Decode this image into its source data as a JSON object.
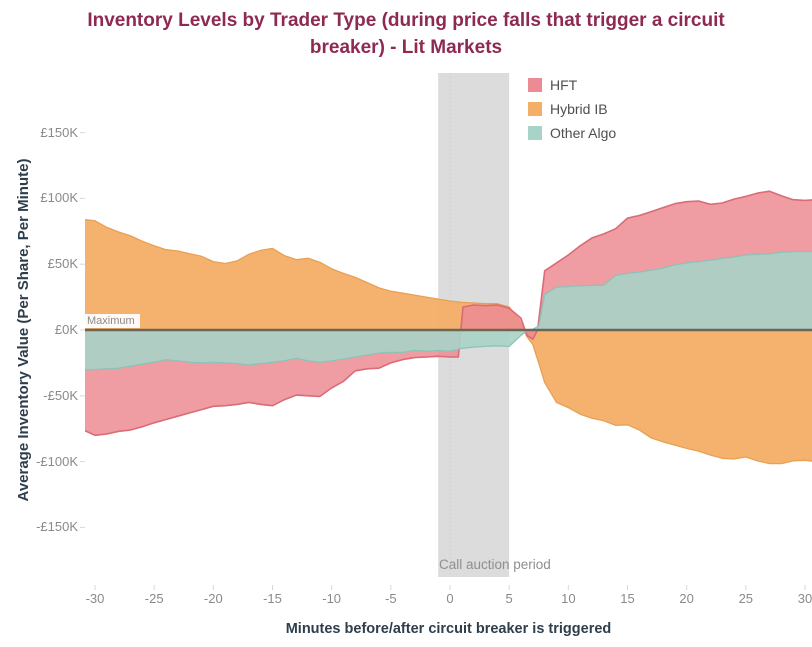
{
  "title": {
    "text": "Inventory Levels by Trader Type (during price falls that trigger a circuit breaker) - Lit Markets",
    "lines": [
      "Inventory Levels by Trader Type (during price falls that trigger a circuit",
      "breaker) - Lit Markets"
    ]
  },
  "y_axis": {
    "title": "Average Inventory Value (Per Share, Per Minute)",
    "ticks": [
      {
        "label": "£150K",
        "value_k": 150
      },
      {
        "label": "£100K",
        "value_k": 100
      },
      {
        "label": "£50K",
        "value_k": 50
      },
      {
        "label": "£0K",
        "value_k": 0
      },
      {
        "label": "-£50K",
        "value_k": -50
      },
      {
        "label": "-£100K",
        "value_k": -100
      },
      {
        "label": "-£150K",
        "value_k": -150
      }
    ]
  },
  "x_axis": {
    "title": "Minutes before/after circuit breaker is triggered",
    "ticks": [
      -30,
      -25,
      -20,
      -15,
      -10,
      -5,
      0,
      5,
      10,
      15,
      20,
      25,
      30
    ]
  },
  "legend": [
    {
      "label": "HFT",
      "color": "#ec8b93"
    },
    {
      "label": "Hybrid IB",
      "color": "#f4ae67"
    },
    {
      "label": "Other Algo",
      "color": "#a8d3c8"
    }
  ],
  "annotations": {
    "reference_line_label": "Maximum",
    "band_label": "Call auction period"
  },
  "colors": {
    "title": "#8e2a52",
    "axis_title": "#2f3e4c",
    "tick_label": "#8a8a8a",
    "band_fill": "#dcdcdc",
    "zero_line": "#6b6754",
    "tick_mark": "#d7d7d7",
    "hft_fill": "#ec8b93",
    "hft_edge": "#da6b77",
    "hybrid_fill": "#f4ae67",
    "hybrid_edge": "#e8a052",
    "algo_fill": "#a8d3c8",
    "algo_edge": "#8cc3b6"
  },
  "chart_data": {
    "type": "area",
    "title": "Inventory Levels by Trader Type (during price falls that trigger a circuit breaker) - Lit Markets",
    "xlabel": "Minutes before/after circuit breaker is triggered",
    "ylabel": "Average Inventory Value (Per Share, Per Minute)",
    "units": "GBP thousands (£K)",
    "x_range": [
      -31,
      31
    ],
    "ylim_k": [
      -175,
      195
    ],
    "grid": false,
    "legend_position": "top-right-inside",
    "reference_line": {
      "label": "Maximum",
      "value_k": 0
    },
    "band": {
      "label": "Call auction period",
      "from_minute": -1,
      "to_minute": 5
    },
    "zero_gridline_minute": 0,
    "draw_order": [
      "Hybrid IB",
      "HFT",
      "Other Algo"
    ],
    "series": [
      {
        "name": "Hybrid IB",
        "color": "#f4ae67",
        "points": [
          [
            -31,
            84
          ],
          [
            -30,
            83
          ],
          [
            -29,
            78
          ],
          [
            -28,
            74.5
          ],
          [
            -27,
            71.5
          ],
          [
            -26,
            67.5
          ],
          [
            -25,
            64
          ],
          [
            -24,
            61
          ],
          [
            -23,
            60
          ],
          [
            -22,
            58
          ],
          [
            -21,
            56
          ],
          [
            -20,
            52
          ],
          [
            -19,
            50.5
          ],
          [
            -18,
            52.5
          ],
          [
            -17,
            57.5
          ],
          [
            -16,
            60.5
          ],
          [
            -15,
            62
          ],
          [
            -14,
            56.5
          ],
          [
            -13,
            53.5
          ],
          [
            -12,
            54.5
          ],
          [
            -11,
            51.5
          ],
          [
            -10,
            46.5
          ],
          [
            -9,
            43
          ],
          [
            -8,
            40
          ],
          [
            -7,
            36
          ],
          [
            -6,
            32
          ],
          [
            -5,
            29.5
          ],
          [
            -4,
            28
          ],
          [
            -3,
            26.5
          ],
          [
            -2,
            25
          ],
          [
            -1,
            23.5
          ],
          [
            0,
            22
          ],
          [
            1,
            21
          ],
          [
            2,
            20.5
          ],
          [
            3,
            20
          ],
          [
            4,
            20
          ],
          [
            5,
            17.5
          ],
          [
            6,
            5
          ],
          [
            6.5,
            -5
          ],
          [
            7,
            -11
          ],
          [
            7.5,
            -25
          ],
          [
            8,
            -40
          ],
          [
            9,
            -55
          ],
          [
            10,
            -59
          ],
          [
            11,
            -64
          ],
          [
            12,
            -67
          ],
          [
            13,
            -69
          ],
          [
            14,
            -72.5
          ],
          [
            15,
            -72
          ],
          [
            16,
            -76
          ],
          [
            17,
            -82
          ],
          [
            18,
            -85
          ],
          [
            19,
            -87.5
          ],
          [
            20,
            -90
          ],
          [
            21,
            -92
          ],
          [
            22,
            -95
          ],
          [
            23,
            -97.5
          ],
          [
            24,
            -98
          ],
          [
            25,
            -96.5
          ],
          [
            26,
            -99.5
          ],
          [
            27,
            -101.5
          ],
          [
            28,
            -101.5
          ],
          [
            29,
            -99.5
          ],
          [
            30,
            -99
          ],
          [
            31,
            -100
          ]
        ]
      },
      {
        "name": "HFT",
        "color": "#ec8b93",
        "points": [
          [
            -31,
            -76
          ],
          [
            -30,
            -80
          ],
          [
            -29,
            -79
          ],
          [
            -28,
            -77
          ],
          [
            -27,
            -76
          ],
          [
            -26,
            -73.5
          ],
          [
            -25,
            -70.5
          ],
          [
            -24,
            -68
          ],
          [
            -23,
            -65.5
          ],
          [
            -22,
            -63
          ],
          [
            -21,
            -60.5
          ],
          [
            -20,
            -58
          ],
          [
            -19,
            -57.5
          ],
          [
            -18,
            -56.5
          ],
          [
            -17,
            -55
          ],
          [
            -16,
            -56.5
          ],
          [
            -15,
            -57.5
          ],
          [
            -14,
            -53
          ],
          [
            -13,
            -49.5
          ],
          [
            -12,
            -50
          ],
          [
            -11,
            -50.5
          ],
          [
            -10,
            -44
          ],
          [
            -9,
            -39
          ],
          [
            -8,
            -31
          ],
          [
            -7,
            -29.5
          ],
          [
            -6,
            -29
          ],
          [
            -5,
            -25
          ],
          [
            -4,
            -22.5
          ],
          [
            -3,
            -21
          ],
          [
            -2,
            -20.5
          ],
          [
            -1,
            -20
          ],
          [
            0,
            -20.5
          ],
          [
            0.7,
            -20.5
          ],
          [
            1.1,
            17.5
          ],
          [
            2,
            19
          ],
          [
            3,
            18.5
          ],
          [
            4,
            19
          ],
          [
            5,
            16.5
          ],
          [
            6,
            9
          ],
          [
            6.5,
            -4
          ],
          [
            7,
            -7
          ],
          [
            7.4,
            0
          ],
          [
            8,
            45
          ],
          [
            9,
            51
          ],
          [
            10,
            57
          ],
          [
            11,
            64
          ],
          [
            12,
            70
          ],
          [
            13,
            73
          ],
          [
            14,
            77
          ],
          [
            15,
            85
          ],
          [
            16,
            87
          ],
          [
            17,
            90
          ],
          [
            18,
            93
          ],
          [
            19,
            96
          ],
          [
            20,
            97.5
          ],
          [
            21,
            98
          ],
          [
            22,
            95.5
          ],
          [
            23,
            96.5
          ],
          [
            24,
            99.5
          ],
          [
            25,
            101.5
          ],
          [
            26,
            104
          ],
          [
            27,
            105.5
          ],
          [
            28,
            102
          ],
          [
            29,
            99
          ],
          [
            30,
            98.5
          ],
          [
            31,
            99
          ]
        ]
      },
      {
        "name": "Other Algo",
        "color": "#a8d3c8",
        "points": [
          [
            -31,
            -30.5
          ],
          [
            -30,
            -30
          ],
          [
            -29,
            -29.5
          ],
          [
            -28,
            -29
          ],
          [
            -27,
            -27.5
          ],
          [
            -26,
            -26
          ],
          [
            -25,
            -24.5
          ],
          [
            -24,
            -22.5
          ],
          [
            -23,
            -23.5
          ],
          [
            -22,
            -24.5
          ],
          [
            -21,
            -25
          ],
          [
            -20,
            -24.5
          ],
          [
            -19,
            -25
          ],
          [
            -18,
            -25.5
          ],
          [
            -17,
            -26.5
          ],
          [
            -16,
            -25.5
          ],
          [
            -15,
            -24.5
          ],
          [
            -14,
            -23.5
          ],
          [
            -13,
            -21.5
          ],
          [
            -12,
            -23.5
          ],
          [
            -11,
            -24.5
          ],
          [
            -10,
            -23.5
          ],
          [
            -9,
            -22
          ],
          [
            -8,
            -20.5
          ],
          [
            -7,
            -19
          ],
          [
            -6,
            -17.5
          ],
          [
            -5,
            -17
          ],
          [
            -4,
            -17
          ],
          [
            -3,
            -15.5
          ],
          [
            -2,
            -16
          ],
          [
            -1,
            -15.5
          ],
          [
            0,
            -16
          ],
          [
            1,
            -14
          ],
          [
            2,
            -13
          ],
          [
            3,
            -12.5
          ],
          [
            4,
            -12
          ],
          [
            5,
            -12.5
          ],
          [
            6,
            -4
          ],
          [
            6.5,
            -0.5
          ],
          [
            7,
            0.5
          ],
          [
            7.5,
            3
          ],
          [
            8,
            27
          ],
          [
            9,
            32.5
          ],
          [
            10,
            33
          ],
          [
            11,
            33.5
          ],
          [
            12,
            34
          ],
          [
            13,
            34
          ],
          [
            14,
            41.5
          ],
          [
            15,
            43
          ],
          [
            16,
            44
          ],
          [
            17,
            45.5
          ],
          [
            18,
            47
          ],
          [
            19,
            49.5
          ],
          [
            20,
            51
          ],
          [
            21,
            52
          ],
          [
            22,
            53
          ],
          [
            23,
            54.5
          ],
          [
            24,
            55.5
          ],
          [
            25,
            57
          ],
          [
            26,
            57.5
          ],
          [
            27,
            58
          ],
          [
            28,
            59
          ],
          [
            29,
            59.5
          ],
          [
            30,
            59.5
          ],
          [
            31,
            59.5
          ]
        ]
      }
    ]
  }
}
